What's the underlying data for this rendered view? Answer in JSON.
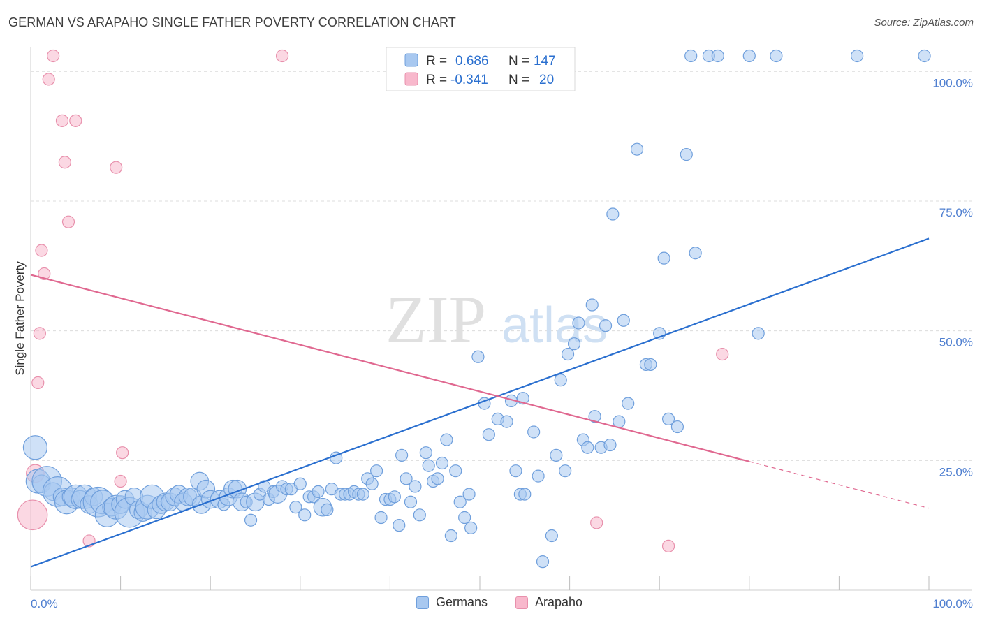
{
  "title": "GERMAN VS ARAPAHO SINGLE FATHER POVERTY CORRELATION CHART",
  "source": "Source: ZipAtlas.com",
  "watermark": {
    "zip": "ZIP",
    "atlas": "atlas"
  },
  "colors": {
    "germans_fill": "#a8c8f0",
    "germans_stroke": "#6f9fdc",
    "germans_line": "#2a6fcf",
    "arapaho_fill": "#f8b8cc",
    "arapaho_stroke": "#e890ac",
    "arapaho_line": "#e06890",
    "grid": "#dcdcdc",
    "tick": "#4f7fd0"
  },
  "legend": {
    "germans": {
      "r_label": "R =",
      "r_value": "0.686",
      "n_label": "N =",
      "n_value": "147"
    },
    "arapaho": {
      "r_label": "R =",
      "r_value": "-0.341",
      "n_label": "N =",
      "n_value": "20"
    }
  },
  "chart_data": {
    "type": "scatter",
    "ylabel": "Single Father Poverty",
    "xlim": [
      0,
      100
    ],
    "ylim": [
      0,
      103
    ],
    "x_tick_labels": [
      {
        "value": 0,
        "label": "0.0%"
      },
      {
        "value": 100,
        "label": "100.0%"
      }
    ],
    "y_tick_labels": [
      {
        "value": 25,
        "label": "25.0%"
      },
      {
        "value": 50,
        "label": "50.0%"
      },
      {
        "value": 75,
        "label": "75.0%"
      },
      {
        "value": 100,
        "label": "100.0%"
      }
    ],
    "x_minor_ticks": [
      0,
      10,
      20,
      30,
      40,
      50,
      60,
      70,
      80,
      90,
      100
    ],
    "y_gridlines": [
      25,
      50,
      75,
      100
    ],
    "series": [
      {
        "name": "Germans",
        "trend": {
          "x0": 0,
          "y0": 4.5,
          "x1": 100,
          "y1": 67.8
        },
        "points": [
          [
            0.5,
            27.5,
            2
          ],
          [
            0.8,
            21,
            2
          ],
          [
            1.2,
            20.5,
            1.5
          ],
          [
            1.8,
            21,
            2.5
          ],
          [
            2.5,
            19,
            1.5
          ],
          [
            3,
            19,
            2.5
          ],
          [
            3.5,
            18,
            1.5
          ],
          [
            4,
            17,
            2
          ],
          [
            4.5,
            18,
            1.5
          ],
          [
            5,
            18,
            2
          ],
          [
            5.5,
            17.5,
            1.5
          ],
          [
            6,
            18,
            2
          ],
          [
            6.5,
            16.5,
            1.5
          ],
          [
            7,
            18,
            1.5
          ],
          [
            7.5,
            17,
            2.5
          ],
          [
            8,
            17,
            2
          ],
          [
            8.5,
            14.5,
            2
          ],
          [
            9,
            16,
            1.5
          ],
          [
            9.5,
            16,
            2
          ],
          [
            10,
            16.5,
            1.5
          ],
          [
            10.5,
            17.5,
            1.5
          ],
          [
            11,
            15,
            2.5
          ],
          [
            11.5,
            18,
            1.5
          ],
          [
            12,
            15.5,
            1.5
          ],
          [
            12.5,
            15,
            1.5
          ],
          [
            13,
            16,
            2
          ],
          [
            13.5,
            18,
            2
          ],
          [
            14,
            15.5,
            1.5
          ],
          [
            14.5,
            16.5,
            1.5
          ],
          [
            15,
            17,
            1.5
          ],
          [
            15.5,
            17,
            1.5
          ],
          [
            16,
            18,
            1.5
          ],
          [
            16.5,
            18.5,
            1.5
          ],
          [
            17,
            17,
            1.5
          ],
          [
            17.5,
            18,
            1.5
          ],
          [
            18,
            18,
            1.5
          ],
          [
            18.8,
            21,
            1.5
          ],
          [
            19,
            16.5,
            1.5
          ],
          [
            19.5,
            19.5,
            1.5
          ],
          [
            20,
            17.5,
            1.5
          ],
          [
            21,
            17.5,
            1.5
          ],
          [
            21.5,
            16.5,
            1
          ],
          [
            22,
            18,
            1.5
          ],
          [
            22.5,
            19.5,
            1.5
          ],
          [
            23,
            19.5,
            1.5
          ],
          [
            23.5,
            17,
            1.5
          ],
          [
            24,
            17,
            1
          ],
          [
            24.5,
            13.5,
            1
          ],
          [
            25,
            17,
            1.5
          ],
          [
            25.5,
            18.5,
            1
          ],
          [
            26,
            20,
            1
          ],
          [
            26.5,
            17.5,
            1
          ],
          [
            27,
            19,
            1
          ],
          [
            27.5,
            18.5,
            1.5
          ],
          [
            28,
            20,
            1
          ],
          [
            28.5,
            19.5,
            1
          ],
          [
            29,
            19.5,
            1
          ],
          [
            29.5,
            16,
            1
          ],
          [
            30,
            20.5,
            1
          ],
          [
            30.5,
            14.5,
            1
          ],
          [
            31,
            18,
            1
          ],
          [
            31.5,
            18,
            1
          ],
          [
            32,
            19,
            1
          ],
          [
            32.5,
            16,
            1.5
          ],
          [
            33,
            15.5,
            1
          ],
          [
            33.5,
            19.5,
            1
          ],
          [
            34,
            25.5,
            1
          ],
          [
            34.5,
            18.5,
            1
          ],
          [
            35,
            18.5,
            1
          ],
          [
            35.5,
            18.5,
            1
          ],
          [
            36,
            19,
            1
          ],
          [
            36.5,
            18.5,
            1
          ],
          [
            37,
            18.5,
            1
          ],
          [
            37.5,
            21.5,
            1
          ],
          [
            38,
            20.5,
            1
          ],
          [
            38.5,
            23,
            1
          ],
          [
            39,
            14,
            1
          ],
          [
            39.5,
            17.5,
            1
          ],
          [
            40,
            17.5,
            1
          ],
          [
            40.5,
            18,
            1
          ],
          [
            41,
            12.5,
            1
          ],
          [
            41.3,
            26,
            1
          ],
          [
            41.8,
            21.5,
            1
          ],
          [
            42.3,
            17,
            1
          ],
          [
            42.8,
            20,
            1
          ],
          [
            43.3,
            14.5,
            1
          ],
          [
            44,
            26.5,
            1
          ],
          [
            44.3,
            24,
            1
          ],
          [
            44.8,
            21,
            1
          ],
          [
            45.3,
            21.5,
            1
          ],
          [
            45.8,
            24.5,
            1
          ],
          [
            46.3,
            29,
            1
          ],
          [
            46.8,
            10.5,
            1
          ],
          [
            47.3,
            23,
            1
          ],
          [
            47.8,
            17,
            1
          ],
          [
            48.3,
            14,
            1
          ],
          [
            48.8,
            18.5,
            1
          ],
          [
            49,
            12,
            1
          ],
          [
            49.8,
            45,
            1
          ],
          [
            50.5,
            36,
            1
          ],
          [
            51,
            30,
            1
          ],
          [
            52,
            33,
            1
          ],
          [
            53,
            32.5,
            1
          ],
          [
            53.5,
            36.5,
            1
          ],
          [
            54,
            23,
            1
          ],
          [
            54.5,
            18.5,
            1
          ],
          [
            54.8,
            37,
            1
          ],
          [
            55,
            18.5,
            1
          ],
          [
            56,
            30.5,
            1
          ],
          [
            56.5,
            22,
            1
          ],
          [
            57,
            5.5,
            1
          ],
          [
            58,
            10.5,
            1
          ],
          [
            58.5,
            26,
            1
          ],
          [
            59,
            40.5,
            1
          ],
          [
            59.5,
            23,
            1
          ],
          [
            59.8,
            45.5,
            1
          ],
          [
            60.5,
            47.5,
            1
          ],
          [
            61,
            51.5,
            1
          ],
          [
            61.5,
            29,
            1
          ],
          [
            62,
            27.5,
            1
          ],
          [
            62.5,
            55,
            1
          ],
          [
            62.8,
            33.5,
            1
          ],
          [
            63.5,
            27.5,
            1
          ],
          [
            64,
            51,
            1
          ],
          [
            64.5,
            28,
            1
          ],
          [
            64.8,
            72.5,
            1
          ],
          [
            65.5,
            32.5,
            1
          ],
          [
            66,
            52,
            1
          ],
          [
            66.5,
            36,
            1
          ],
          [
            67.5,
            85,
            1
          ],
          [
            68.5,
            43.5,
            1
          ],
          [
            69,
            43.5,
            1
          ],
          [
            70,
            49.5,
            1
          ],
          [
            70.5,
            64,
            1
          ],
          [
            71,
            33,
            1
          ],
          [
            72,
            31.5,
            1
          ],
          [
            73,
            84,
            1
          ],
          [
            73.5,
            103,
            1
          ],
          [
            74,
            65,
            1
          ],
          [
            75.5,
            103,
            1
          ],
          [
            76.5,
            103,
            1
          ],
          [
            80,
            103,
            1
          ],
          [
            81,
            49.5,
            1
          ],
          [
            83,
            103,
            1
          ],
          [
            92,
            103,
            1
          ],
          [
            99.5,
            103,
            1
          ]
        ]
      },
      {
        "name": "Arapaho",
        "trend": {
          "x0": 0,
          "y0": 60.8,
          "x1": 80,
          "y1": 24.8,
          "dashed_to": {
            "x": 100,
            "y": 15.8
          }
        },
        "points": [
          [
            0.2,
            14.5,
            2.5
          ],
          [
            0.5,
            22.5,
            1.5
          ],
          [
            0.8,
            40,
            1
          ],
          [
            1,
            49.5,
            1
          ],
          [
            1.2,
            65.5,
            1
          ],
          [
            1.5,
            61,
            1
          ],
          [
            2,
            98.5,
            1
          ],
          [
            2.5,
            103,
            1
          ],
          [
            3.5,
            90.5,
            1
          ],
          [
            3.8,
            82.5,
            1
          ],
          [
            4.2,
            71,
            1
          ],
          [
            5,
            90.5,
            1
          ],
          [
            6.5,
            9.5,
            1
          ],
          [
            9.5,
            81.5,
            1
          ],
          [
            10,
            21,
            1
          ],
          [
            10.2,
            26.5,
            1
          ],
          [
            28,
            103,
            1
          ],
          [
            63,
            13,
            1
          ],
          [
            71,
            8.5,
            1
          ],
          [
            77,
            45.5,
            1
          ]
        ]
      }
    ]
  },
  "bottom_legend": {
    "germans": "Germans",
    "arapaho": "Arapaho"
  }
}
